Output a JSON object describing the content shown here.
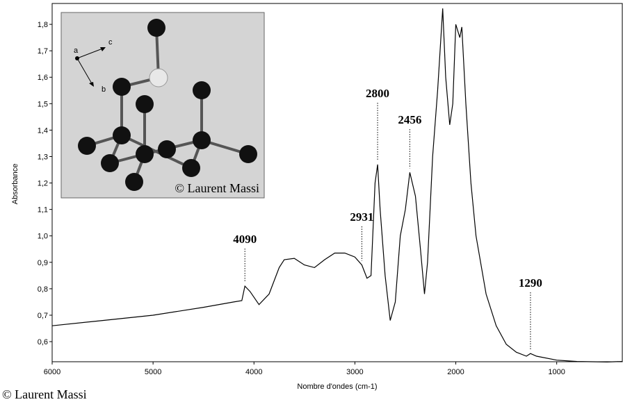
{
  "chart_data": {
    "type": "line",
    "x_label": "Nombre d'ondes (cm-1)",
    "y_label": "Absorbance",
    "color": "#000000",
    "xlim": [
      6000,
      350
    ],
    "ylim": [
      0.524,
      1.879
    ],
    "xticks": [
      6000,
      5000,
      4000,
      3000,
      2000,
      1000
    ],
    "yticks": [
      {
        "value": 0.6,
        "label": "0,6"
      },
      {
        "value": 0.7,
        "label": "0,7"
      },
      {
        "value": 0.8,
        "label": "0,8"
      },
      {
        "value": 0.9,
        "label": "0,9"
      },
      {
        "value": 1.0,
        "label": "1,0"
      },
      {
        "value": 1.1,
        "label": "1,1"
      },
      {
        "value": 1.2,
        "label": "1,2"
      },
      {
        "value": 1.3,
        "label": "1,3"
      },
      {
        "value": 1.4,
        "label": "1,4"
      },
      {
        "value": 1.5,
        "label": "1,5"
      },
      {
        "value": 1.6,
        "label": "1,6"
      },
      {
        "value": 1.7,
        "label": "1,7"
      },
      {
        "value": 1.8,
        "label": "1,8"
      }
    ],
    "x": [
      6000,
      5500,
      5000,
      4500,
      4200,
      4120,
      4090,
      4040,
      3950,
      3850,
      3750,
      3700,
      3600,
      3500,
      3400,
      3300,
      3200,
      3100,
      3000,
      2931,
      2880,
      2840,
      2800,
      2775,
      2750,
      2700,
      2650,
      2600,
      2550,
      2500,
      2456,
      2400,
      2350,
      2310,
      2280,
      2230,
      2180,
      2130,
      2100,
      2060,
      2030,
      2000,
      1960,
      1940,
      1900,
      1850,
      1800,
      1700,
      1600,
      1500,
      1400,
      1300,
      1260,
      1200,
      1000,
      800,
      500,
      350
    ],
    "values": [
      0.66,
      0.68,
      0.7,
      0.73,
      0.75,
      0.755,
      0.81,
      0.79,
      0.74,
      0.78,
      0.88,
      0.91,
      0.915,
      0.89,
      0.88,
      0.91,
      0.935,
      0.935,
      0.92,
      0.89,
      0.84,
      0.85,
      1.2,
      1.27,
      1.1,
      0.85,
      0.68,
      0.75,
      1.0,
      1.1,
      1.24,
      1.15,
      0.95,
      0.78,
      0.9,
      1.3,
      1.55,
      1.86,
      1.6,
      1.42,
      1.5,
      1.8,
      1.75,
      1.79,
      1.5,
      1.2,
      1.0,
      0.78,
      0.66,
      0.59,
      0.56,
      0.545,
      0.555,
      0.545,
      0.53,
      0.525,
      0.523,
      0.525
    ],
    "annotations": [
      {
        "text": "4090",
        "x": 4090,
        "y": 0.81
      },
      {
        "text": "2931",
        "x": 2931,
        "y": 0.89
      },
      {
        "text": "2800",
        "x": 2775,
        "y": 1.27
      },
      {
        "text": "2456",
        "x": 2456,
        "y": 1.24
      },
      {
        "text": "1290",
        "x": 1260,
        "y": 0.555
      }
    ]
  },
  "inset": {
    "axis_labels": [
      "a",
      "b",
      "c"
    ],
    "credit": "© Laurent Massi"
  },
  "footer": "© Laurent Massi"
}
